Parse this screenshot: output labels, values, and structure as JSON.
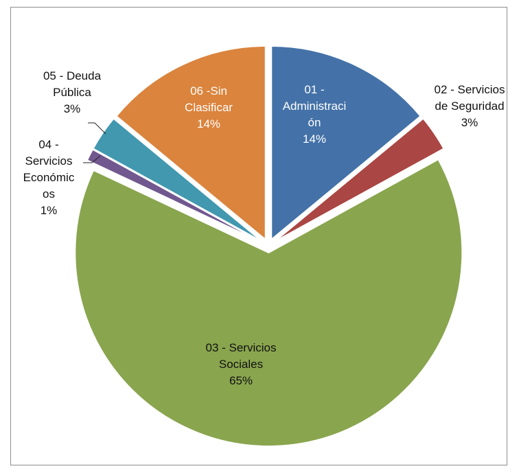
{
  "chart_data": {
    "type": "pie",
    "title": "",
    "slices": [
      {
        "name_lines": [
          "01 -",
          "Administraci",
          "ón"
        ],
        "pct_label": "14%",
        "value": 14,
        "color": "#4472a8"
      },
      {
        "name_lines": [
          "02 - Servicios",
          "de Seguridad"
        ],
        "pct_label": "3%",
        "value": 3,
        "color": "#aa4643"
      },
      {
        "name_lines": [
          "03 - Servicios",
          "Sociales"
        ],
        "pct_label": "65%",
        "value": 65,
        "color": "#89a54e"
      },
      {
        "name_lines": [
          "04 -",
          "Servicios",
          "Económic",
          "os"
        ],
        "pct_label": "1%",
        "value": 1,
        "color": "#71588f"
      },
      {
        "name_lines": [
          "05 - Deuda",
          "Pública"
        ],
        "pct_label": "3%",
        "value": 3,
        "color": "#4198af"
      },
      {
        "name_lines": [
          "06 -Sin",
          "Clasificar"
        ],
        "pct_label": "14%",
        "value": 14,
        "color": "#db843d"
      }
    ]
  }
}
